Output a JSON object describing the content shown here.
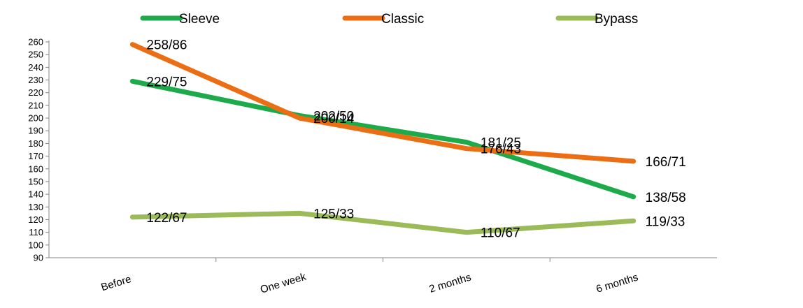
{
  "chart_data": {
    "type": "line",
    "categories": [
      "Before",
      "One week",
      "2 months",
      "6 months"
    ],
    "series": [
      {
        "name": "Sleeve",
        "color": "#1DAA4B",
        "values": [
          229,
          202,
          181,
          138
        ],
        "labels": [
          "229/75",
          "202/50",
          "181/25",
          "138/58"
        ]
      },
      {
        "name": "Classic",
        "color": "#EC6E14",
        "values": [
          258,
          200,
          176,
          166
        ],
        "labels": [
          "258/86",
          "200/14",
          "176/43",
          "166/71"
        ]
      },
      {
        "name": "Bypass",
        "color": "#9BBB59",
        "values": [
          122,
          125,
          110,
          119
        ],
        "labels": [
          "122/67",
          "125/33",
          "110/67",
          "119/33"
        ]
      }
    ],
    "ylim": [
      90,
      260
    ],
    "yticks": [
      90,
      100,
      110,
      120,
      130,
      140,
      150,
      160,
      170,
      180,
      190,
      200,
      210,
      220,
      230,
      240,
      250,
      260
    ],
    "grid": false,
    "legend": "top"
  }
}
